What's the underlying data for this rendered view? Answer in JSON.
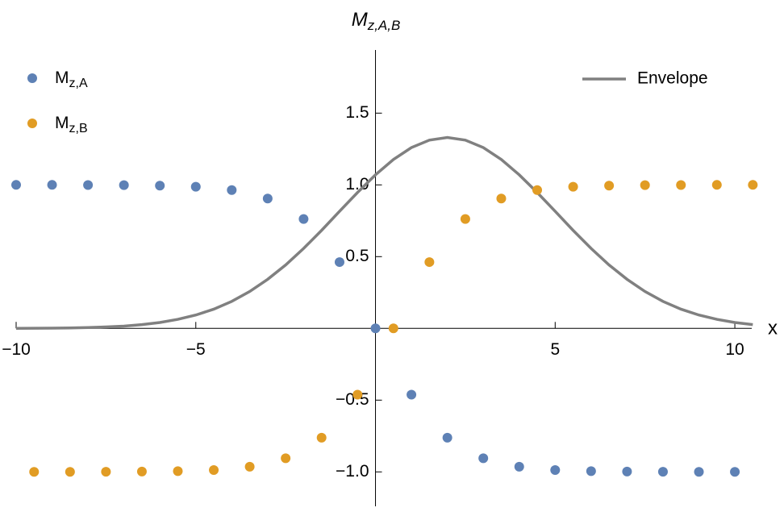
{
  "chart_data": {
    "type": "scatter",
    "title": {
      "main": "M",
      "sub": "z,A,B"
    },
    "x_label": "x",
    "xlim": [
      -10,
      10.47
    ],
    "ylim": [
      -1.24,
      1.94
    ],
    "xticks": [
      {
        "value": -10,
        "label": "−10"
      },
      {
        "value": -5,
        "label": "−5"
      },
      5,
      10
    ],
    "yticks": [
      {
        "value": -1,
        "label": "−1.0"
      },
      {
        "value": -0.5,
        "label": "−0.5"
      },
      0.5,
      {
        "value": 1,
        "label": "1.0"
      },
      1.5
    ],
    "series": [
      {
        "name": "M",
        "name_sub": "z,A",
        "color": "#5e81b5",
        "x": [
          -10,
          -9,
          -8,
          -7,
          -6,
          -5,
          -4,
          -3,
          -2,
          -1,
          0,
          1,
          2,
          3,
          4,
          5,
          6,
          7,
          8,
          9,
          10
        ],
        "values": [
          1,
          1,
          0.999,
          0.998,
          0.995,
          0.987,
          0.964,
          0.905,
          0.762,
          0.462,
          0,
          -0.462,
          -0.762,
          -0.905,
          -0.964,
          -0.987,
          -0.995,
          -0.998,
          -0.999,
          -1,
          -1
        ]
      },
      {
        "name": "M",
        "name_sub": "z,B",
        "color": "#e19c24",
        "x": [
          -9.5,
          -8.5,
          -7.5,
          -6.5,
          -5.5,
          -4.5,
          -3.5,
          -2.5,
          -1.5,
          -0.5,
          0.5,
          1.5,
          2.5,
          3.5,
          4.5,
          5.5,
          6.5,
          7.5,
          8.5,
          9.5,
          10.5
        ],
        "values": [
          -1,
          -1,
          -0.999,
          -0.998,
          -0.995,
          -0.987,
          -0.964,
          -0.905,
          -0.762,
          -0.462,
          0,
          0.462,
          0.762,
          0.905,
          0.964,
          0.987,
          0.995,
          0.998,
          0.999,
          1,
          1
        ]
      }
    ],
    "lines": [
      {
        "name": "Envelope",
        "color": "#808080",
        "x": [
          -10,
          -9.5,
          -9,
          -8.5,
          -8,
          -7.5,
          -7,
          -6.5,
          -6,
          -5.5,
          -5,
          -4.5,
          -4,
          -3.5,
          -3,
          -2.5,
          -2,
          -1.5,
          -1,
          -0.5,
          0,
          0.5,
          1,
          1.5,
          2,
          2.5,
          3,
          3.5,
          4,
          4.5,
          5,
          5.5,
          6,
          6.5,
          7,
          7.5,
          8,
          8.5,
          9,
          9.5,
          10,
          10.5
        ],
        "values": [
          0.0005,
          0.001,
          0.002,
          0.003,
          0.006,
          0.01,
          0.016,
          0.026,
          0.041,
          0.063,
          0.093,
          0.134,
          0.188,
          0.257,
          0.342,
          0.442,
          0.557,
          0.683,
          0.816,
          0.947,
          1.07,
          1.177,
          1.26,
          1.312,
          1.33,
          1.312,
          1.26,
          1.177,
          1.07,
          0.947,
          0.816,
          0.683,
          0.557,
          0.442,
          0.342,
          0.257,
          0.188,
          0.134,
          0.093,
          0.063,
          0.041,
          0.026
        ]
      }
    ]
  }
}
